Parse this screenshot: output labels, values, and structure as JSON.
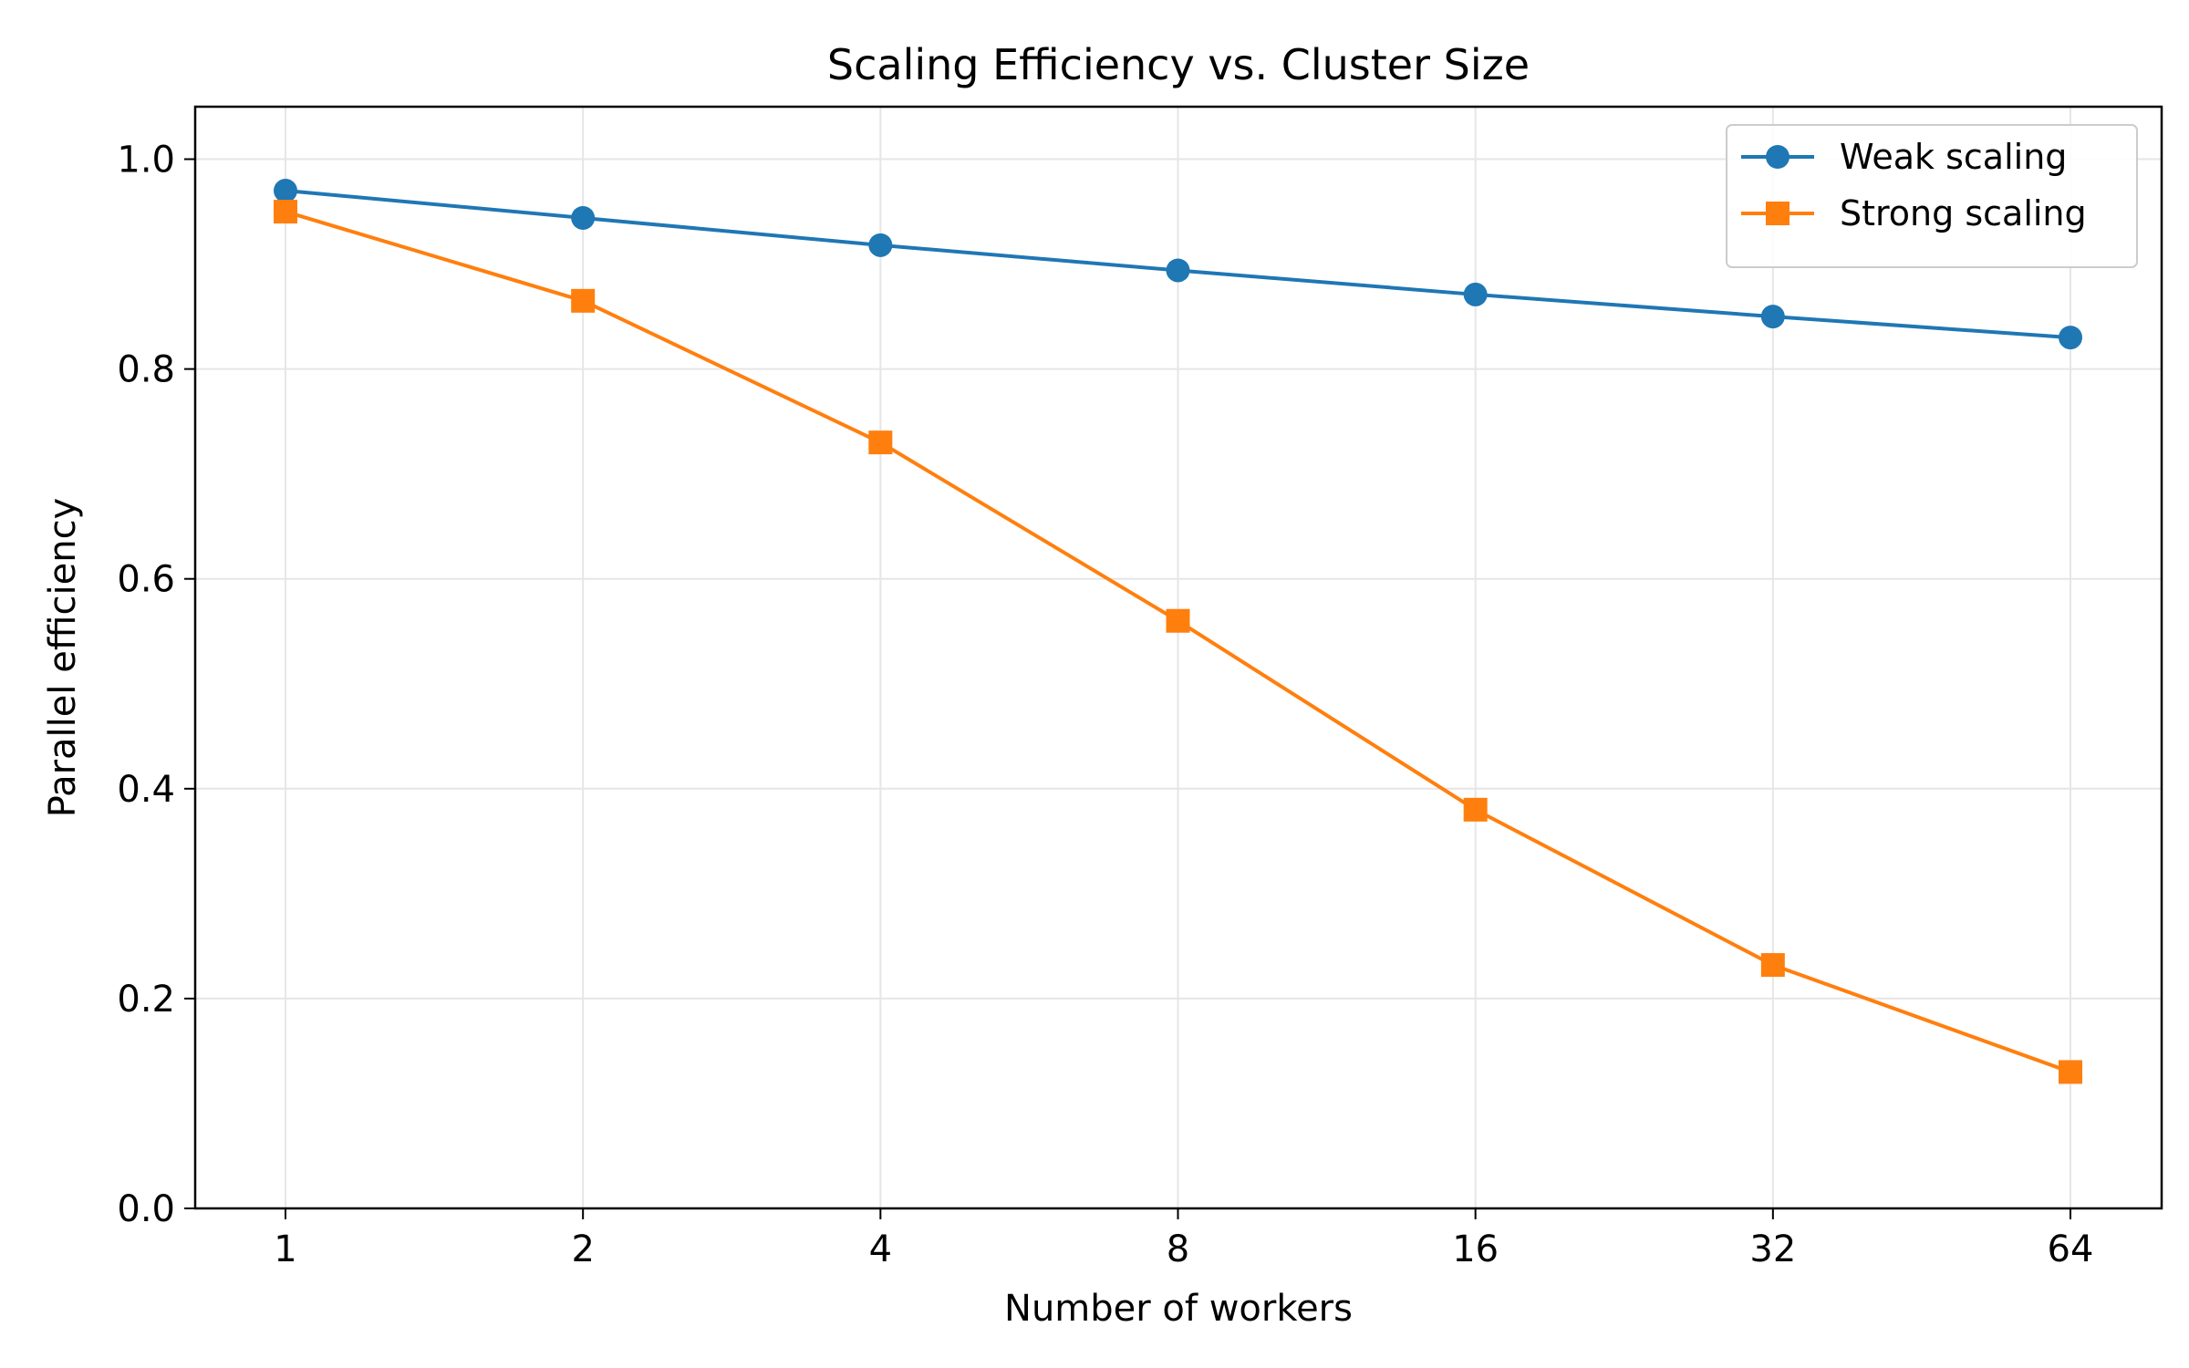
{
  "chart_data": {
    "type": "line",
    "title": "Scaling Efficiency vs. Cluster Size",
    "xlabel": "Number of workers",
    "ylabel": "Parallel efficiency",
    "x_scale": "log2",
    "categories": [
      "1",
      "2",
      "4",
      "8",
      "16",
      "32",
      "64"
    ],
    "x": [
      1,
      2,
      4,
      8,
      16,
      32,
      64
    ],
    "ylim": [
      0.0,
      1.05
    ],
    "yticks": [
      "0.0",
      "0.2",
      "0.4",
      "0.6",
      "0.8",
      "1.0"
    ],
    "grid": true,
    "legend_position": "top-right",
    "series": [
      {
        "name": "Weak scaling",
        "marker": "circle",
        "color": "#1f77b4",
        "values": [
          0.97,
          0.944,
          0.918,
          0.894,
          0.871,
          0.85,
          0.83
        ]
      },
      {
        "name": "Strong scaling",
        "marker": "square",
        "color": "#ff7f0e",
        "values": [
          0.95,
          0.865,
          0.73,
          0.56,
          0.38,
          0.232,
          0.13
        ]
      }
    ]
  }
}
